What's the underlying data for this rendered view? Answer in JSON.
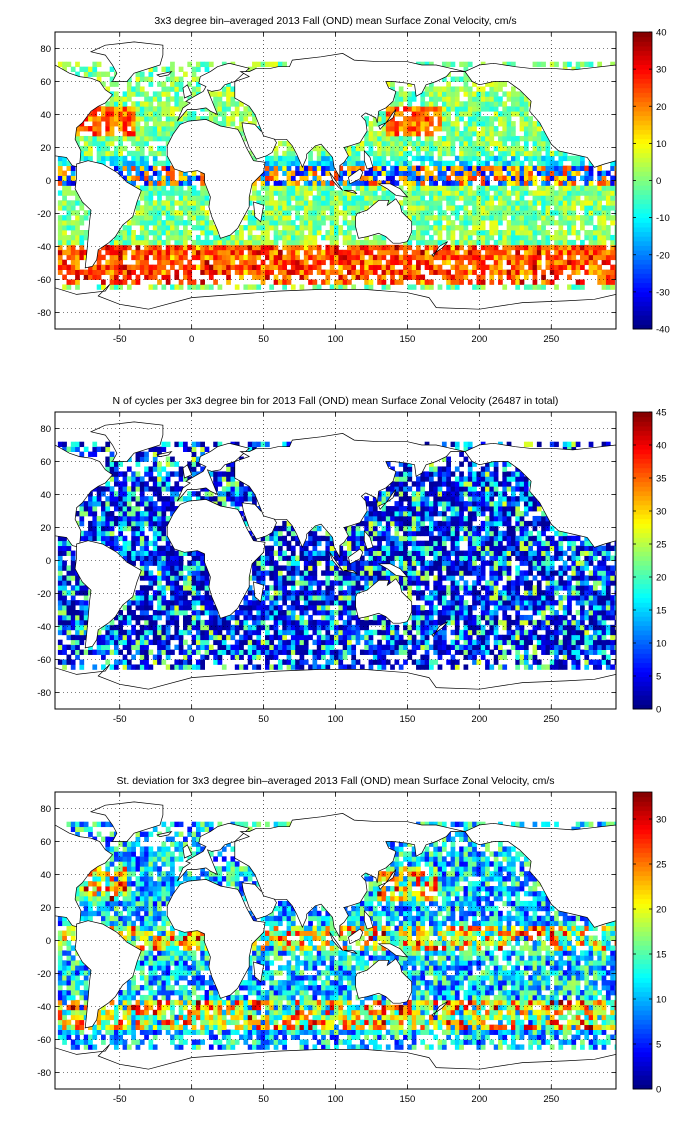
{
  "panels": [
    {
      "title": "3x3 degree bin–averaged 2013 Fall (OND) mean Surface Zonal Velocity, cm/s",
      "colorbar": {
        "min": -40,
        "max": 40,
        "ticks": [
          "-40",
          "-30",
          "-20",
          "-10",
          "0",
          "10",
          "20",
          "30",
          "40"
        ],
        "colormap": "jet"
      },
      "field": "zonal-velocity-mean"
    },
    {
      "title": "N of cycles per 3x3 degree bin for 2013 Fall (OND) mean Surface Zonal Velocity (26487 in total)",
      "colorbar": {
        "min": 0,
        "max": 45,
        "ticks": [
          "0",
          "5",
          "10",
          "15",
          "20",
          "25",
          "30",
          "35",
          "40",
          "45"
        ],
        "colormap": "jet"
      },
      "field": "cycle-count"
    },
    {
      "title": "St. deviation for 3x3 degree bin–averaged 2013 Fall (OND) mean Surface Zonal Velocity, cm/s",
      "colorbar": {
        "min": 0,
        "max": 33,
        "ticks": [
          "0",
          "5",
          "10",
          "15",
          "20",
          "25",
          "30"
        ],
        "colormap": "jet"
      },
      "field": "zonal-velocity-std"
    }
  ],
  "axes": {
    "xlim": [
      -95,
      295
    ],
    "ylim": [
      -90,
      90
    ],
    "xticks": [
      "-50",
      "0",
      "50",
      "100",
      "150",
      "200",
      "250"
    ],
    "yticks": [
      "-80",
      "-60",
      "-40",
      "-20",
      "0",
      "20",
      "40",
      "60",
      "80"
    ],
    "grid": "dotted",
    "bin_size_deg": 3
  }
}
